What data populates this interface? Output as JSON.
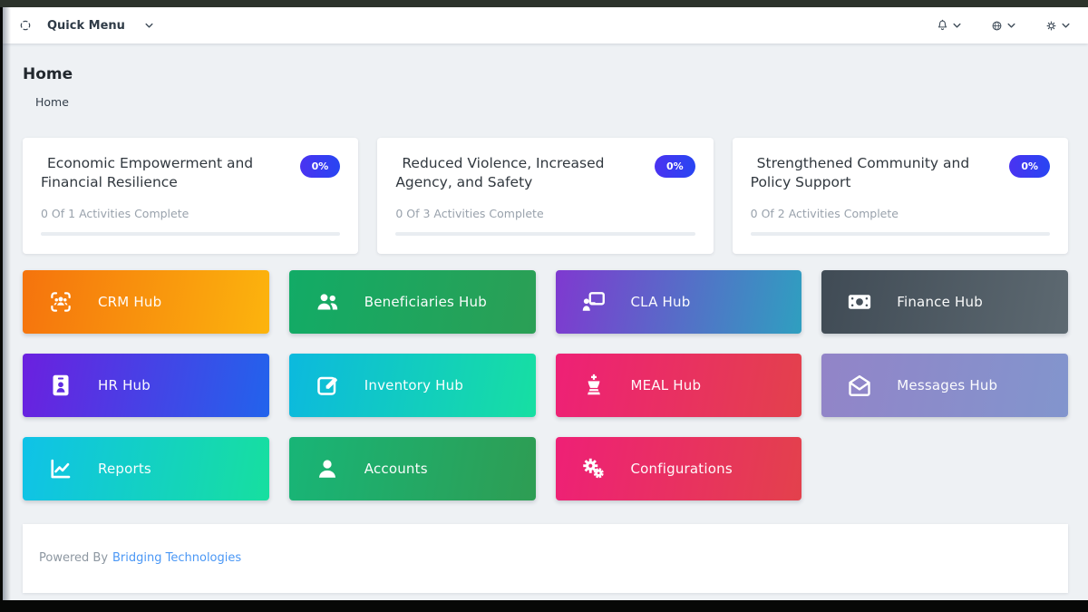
{
  "navbar": {
    "expand": {
      "icon": "expand-icon"
    },
    "quick_menu_label": "Quick Menu",
    "right_menus": [
      {
        "name": "notifications-menu",
        "icon": "bell-icon"
      },
      {
        "name": "language-menu",
        "icon": "globe-icon"
      },
      {
        "name": "settings-menu",
        "icon": "gear-icon"
      }
    ]
  },
  "page": {
    "title": "Home",
    "breadcrumb": "Home"
  },
  "objectives": [
    {
      "title": "Economic Empowerment and Financial Resilience",
      "badge": "0%",
      "subtitle": "0 Of 1 Activities Complete",
      "progress_percent": 0,
      "icon": "objective-ranking-icon"
    },
    {
      "title": "Reduced Violence, Increased Agency, and Safety",
      "badge": "0%",
      "subtitle": "0 Of 3 Activities Complete",
      "progress_percent": 0,
      "icon": "objective-ranking-icon"
    },
    {
      "title": "Strengthened Community and Policy Support",
      "badge": "0%",
      "subtitle": "0 Of 2 Activities Complete",
      "progress_percent": 0,
      "icon": "objective-ranking-icon"
    }
  ],
  "hubs": [
    {
      "label": "CRM Hub",
      "icon": "users-viewfinder-icon",
      "gradient_from": "#f5730d",
      "gradient_to": "#fcb40d"
    },
    {
      "label": "Beneficiaries Hub",
      "icon": "users-icon",
      "gradient_from": "#12ab66",
      "gradient_to": "#2b9f55"
    },
    {
      "label": "CLA Hub",
      "icon": "person-board-icon",
      "gradient_from": "#7f39d0",
      "gradient_to": "#2f9fc0"
    },
    {
      "label": "Finance Hub",
      "icon": "money-bill-icon",
      "gradient_from": "#404b55",
      "gradient_to": "#5d6971"
    },
    {
      "label": "HR Hub",
      "icon": "id-badge-icon",
      "gradient_from": "#6b20df",
      "gradient_to": "#2263ec"
    },
    {
      "label": "Inventory Hub",
      "icon": "edit-icon",
      "gradient_from": "#0cb9de",
      "gradient_to": "#17dfa2"
    },
    {
      "label": "MEAL Hub",
      "icon": "chess-king-icon",
      "gradient_from": "#ee2076",
      "gradient_to": "#e3414c"
    },
    {
      "label": "Messages Hub",
      "icon": "envelope-open-icon",
      "gradient_from": "#9284c8",
      "gradient_to": "#8295cd"
    },
    {
      "label": "Reports",
      "icon": "chart-line-icon",
      "gradient_from": "#0fc2e8",
      "gradient_to": "#17df9f"
    },
    {
      "label": "Accounts",
      "icon": "user-icon",
      "gradient_from": "#18b577",
      "gradient_to": "#2e9d53"
    },
    {
      "label": "Configurations",
      "icon": "gears-icon",
      "gradient_from": "#ee2076",
      "gradient_to": "#e3414c"
    }
  ],
  "footer": {
    "powered_by": "Powered By",
    "link_label": "Bridging Technologies"
  },
  "colors": {
    "badge_gradient_from": "#4a33f1",
    "badge_gradient_to": "#2845f2",
    "link_blue": "#4a97f5",
    "app_background": "#eef1f4"
  }
}
